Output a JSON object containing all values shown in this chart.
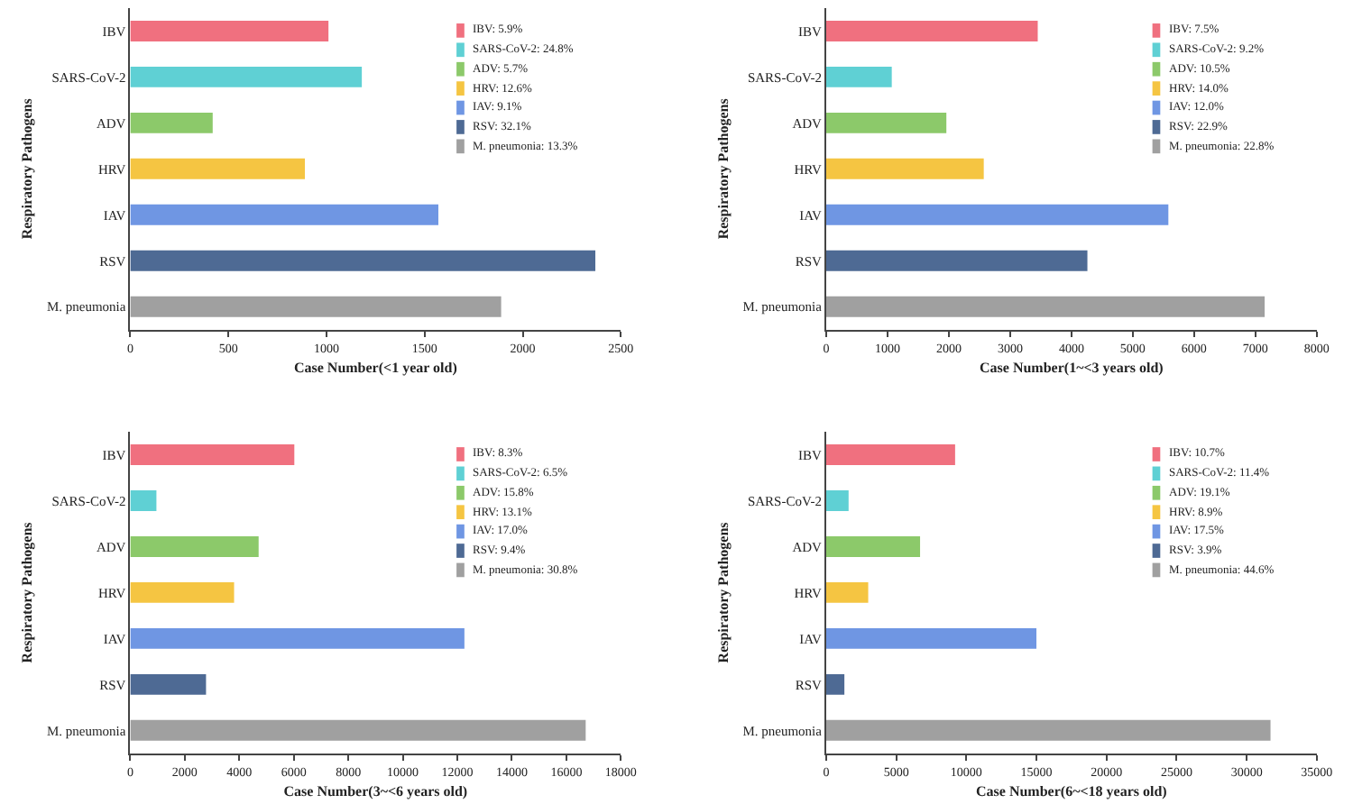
{
  "chart_data": [
    {
      "type": "bar",
      "orientation": "horizontal",
      "categories": [
        "IBV",
        "SARS-CoV-2",
        "ADV",
        "HRV",
        "IAV",
        "RSV",
        "M. pneumonia"
      ],
      "xlabel": "Case Number(<1 year old)",
      "ylabel": "Respiratory Pathogens",
      "xlim": [
        0,
        2500
      ],
      "xticks": [
        0,
        500,
        1000,
        1500,
        2000,
        2500
      ],
      "legend": "top right",
      "series": [
        {
          "name": "IBV: 5.9%",
          "color": "#f0707f",
          "values": [
            1010,
            null,
            null,
            null,
            null,
            null,
            null
          ]
        },
        {
          "name": "SARS-CoV-2: 24.8%",
          "color": "#5fd0d4",
          "values": [
            null,
            1180,
            null,
            null,
            null,
            null,
            null
          ]
        },
        {
          "name": "ADV: 5.7%",
          "color": "#8cc96a",
          "values": [
            null,
            null,
            420,
            null,
            null,
            null,
            null
          ]
        },
        {
          "name": "HRV: 12.6%",
          "color": "#f5c542",
          "values": [
            null,
            null,
            null,
            890,
            null,
            null,
            null
          ]
        },
        {
          "name": "IAV: 9.1%",
          "color": "#6f96e3",
          "values": [
            null,
            null,
            null,
            null,
            1570,
            null,
            null
          ]
        },
        {
          "name": "RSV: 32.1%",
          "color": "#4e6a94",
          "values": [
            null,
            null,
            null,
            null,
            null,
            2370,
            null
          ]
        },
        {
          "name": "M. pneumonia: 13.3%",
          "color": "#a0a0a0",
          "values": [
            null,
            null,
            null,
            null,
            null,
            null,
            1890
          ]
        }
      ]
    },
    {
      "type": "bar",
      "orientation": "horizontal",
      "categories": [
        "IBV",
        "SARS-CoV-2",
        "ADV",
        "HRV",
        "IAV",
        "RSV",
        "M. pneumonia"
      ],
      "xlabel": "Case Number(1~<3 years old)",
      "ylabel": "Respiratory Pathogens",
      "xlim": [
        0,
        8000
      ],
      "xticks": [
        0,
        1000,
        2000,
        3000,
        4000,
        5000,
        6000,
        7000,
        8000
      ],
      "legend": "top right",
      "series": [
        {
          "name": "IBV: 7.5%",
          "color": "#f0707f",
          "values": [
            3450,
            null,
            null,
            null,
            null,
            null,
            null
          ]
        },
        {
          "name": "SARS-CoV-2: 9.2%",
          "color": "#5fd0d4",
          "values": [
            null,
            1070,
            null,
            null,
            null,
            null,
            null
          ]
        },
        {
          "name": "ADV: 10.5%",
          "color": "#8cc96a",
          "values": [
            null,
            null,
            1960,
            null,
            null,
            null,
            null
          ]
        },
        {
          "name": "HRV: 14.0%",
          "color": "#f5c542",
          "values": [
            null,
            null,
            null,
            2570,
            null,
            null,
            null
          ]
        },
        {
          "name": "IAV: 12.0%",
          "color": "#6f96e3",
          "values": [
            null,
            null,
            null,
            null,
            5580,
            null,
            null
          ]
        },
        {
          "name": "RSV: 22.9%",
          "color": "#4e6a94",
          "values": [
            null,
            null,
            null,
            null,
            null,
            4260,
            null
          ]
        },
        {
          "name": "M. pneumonia: 22.8%",
          "color": "#a0a0a0",
          "values": [
            null,
            null,
            null,
            null,
            null,
            null,
            7150
          ]
        }
      ]
    },
    {
      "type": "bar",
      "orientation": "horizontal",
      "categories": [
        "IBV",
        "SARS-CoV-2",
        "ADV",
        "HRV",
        "IAV",
        "RSV",
        "M. pneumonia"
      ],
      "xlabel": "Case Number(3~<6 years old)",
      "ylabel": "Respiratory Pathogens",
      "xlim": [
        0,
        18000
      ],
      "xticks": [
        0,
        2000,
        4000,
        6000,
        8000,
        10000,
        12000,
        14000,
        16000,
        18000
      ],
      "legend": "top right",
      "series": [
        {
          "name": "IBV: 8.3%",
          "color": "#f0707f",
          "values": [
            6020,
            null,
            null,
            null,
            null,
            null,
            null
          ]
        },
        {
          "name": "SARS-CoV-2: 6.5%",
          "color": "#5fd0d4",
          "values": [
            null,
            960,
            null,
            null,
            null,
            null,
            null
          ]
        },
        {
          "name": "ADV: 15.8%",
          "color": "#8cc96a",
          "values": [
            null,
            null,
            4710,
            null,
            null,
            null,
            null
          ]
        },
        {
          "name": "HRV: 13.1%",
          "color": "#f5c542",
          "values": [
            null,
            null,
            null,
            3810,
            null,
            null,
            null
          ]
        },
        {
          "name": "IAV: 17.0%",
          "color": "#6f96e3",
          "values": [
            null,
            null,
            null,
            null,
            12260,
            null,
            null
          ]
        },
        {
          "name": "RSV: 9.4%",
          "color": "#4e6a94",
          "values": [
            null,
            null,
            null,
            null,
            null,
            2780,
            null
          ]
        },
        {
          "name": "M. pneumonia: 30.8%",
          "color": "#a0a0a0",
          "values": [
            null,
            null,
            null,
            null,
            null,
            null,
            16710
          ]
        }
      ]
    },
    {
      "type": "bar",
      "orientation": "horizontal",
      "categories": [
        "IBV",
        "SARS-CoV-2",
        "ADV",
        "HRV",
        "IAV",
        "RSV",
        "M. pneumonia"
      ],
      "xlabel": "Case Number(6~<18 years old)",
      "ylabel": "Respiratory Pathogens",
      "xlim": [
        0,
        35000
      ],
      "xticks": [
        0,
        5000,
        10000,
        15000,
        20000,
        25000,
        30000,
        35000
      ],
      "legend": "top right",
      "series": [
        {
          "name": "IBV: 10.7%",
          "color": "#f0707f",
          "values": [
            9200,
            null,
            null,
            null,
            null,
            null,
            null
          ]
        },
        {
          "name": "SARS-CoV-2: 11.4%",
          "color": "#5fd0d4",
          "values": [
            null,
            1600,
            null,
            null,
            null,
            null,
            null
          ]
        },
        {
          "name": "ADV: 19.1%",
          "color": "#8cc96a",
          "values": [
            null,
            null,
            6700,
            null,
            null,
            null,
            null
          ]
        },
        {
          "name": "HRV: 8.9%",
          "color": "#f5c542",
          "values": [
            null,
            null,
            null,
            3000,
            null,
            null,
            null
          ]
        },
        {
          "name": "IAV: 17.5%",
          "color": "#6f96e3",
          "values": [
            null,
            null,
            null,
            null,
            15000,
            null,
            null
          ]
        },
        {
          "name": "RSV: 3.9%",
          "color": "#4e6a94",
          "values": [
            null,
            null,
            null,
            null,
            null,
            1300,
            null
          ]
        },
        {
          "name": "M. pneumonia: 44.6%",
          "color": "#a0a0a0",
          "values": [
            null,
            null,
            null,
            null,
            null,
            null,
            31700
          ]
        }
      ]
    }
  ]
}
